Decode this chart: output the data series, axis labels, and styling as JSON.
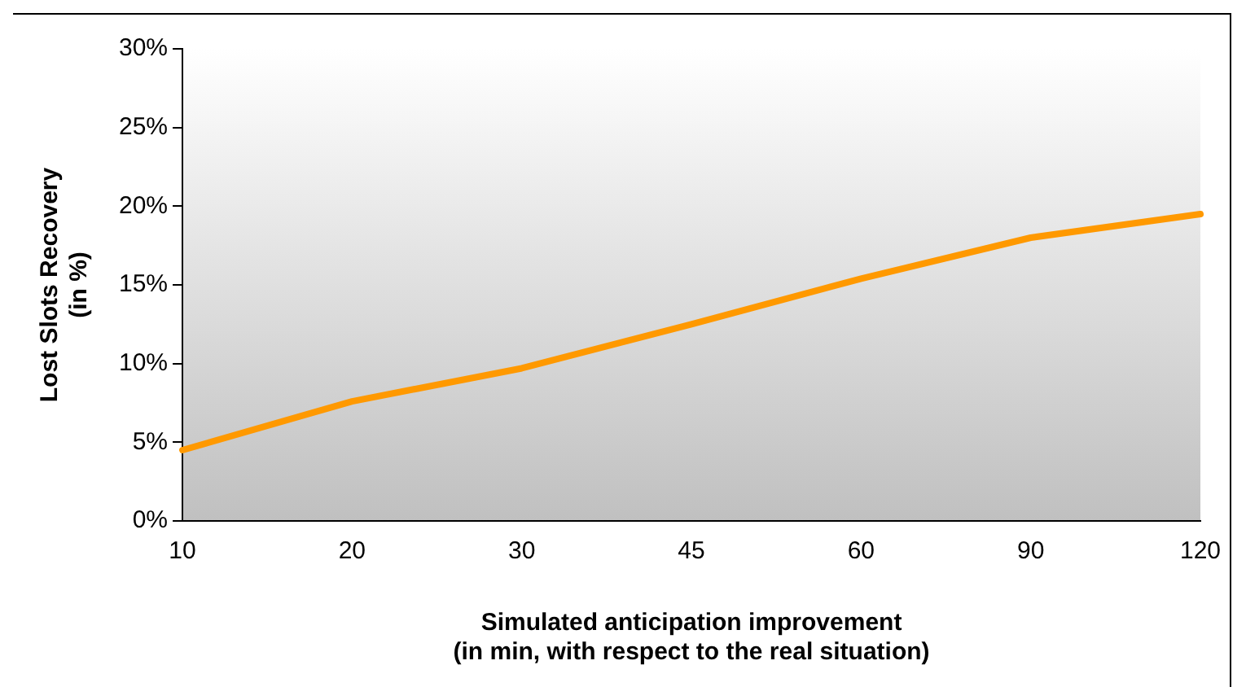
{
  "chart_data": {
    "type": "line",
    "xlabel": "Simulated anticipation improvement\n(in min, with respect to the real situation)",
    "ylabel": "Lost Slots Recovery\n(in %)",
    "categories": [
      "10",
      "20",
      "30",
      "45",
      "60",
      "90",
      "120"
    ],
    "series": [
      {
        "color": "#ff9900",
        "values": [
          4.5,
          7.6,
          9.7,
          12.5,
          15.4,
          18.0,
          19.5
        ]
      }
    ],
    "ylim": [
      0,
      30
    ],
    "yticks": [
      {
        "value": 0,
        "label": "0%"
      },
      {
        "value": 5,
        "label": "5%"
      },
      {
        "value": 10,
        "label": "10%"
      },
      {
        "value": 15,
        "label": "15%"
      },
      {
        "value": 20,
        "label": "20%"
      },
      {
        "value": 25,
        "label": "25%"
      },
      {
        "value": 30,
        "label": "30%"
      }
    ],
    "marker": "none",
    "line_style": "solid",
    "grid": false,
    "legend": false
  }
}
